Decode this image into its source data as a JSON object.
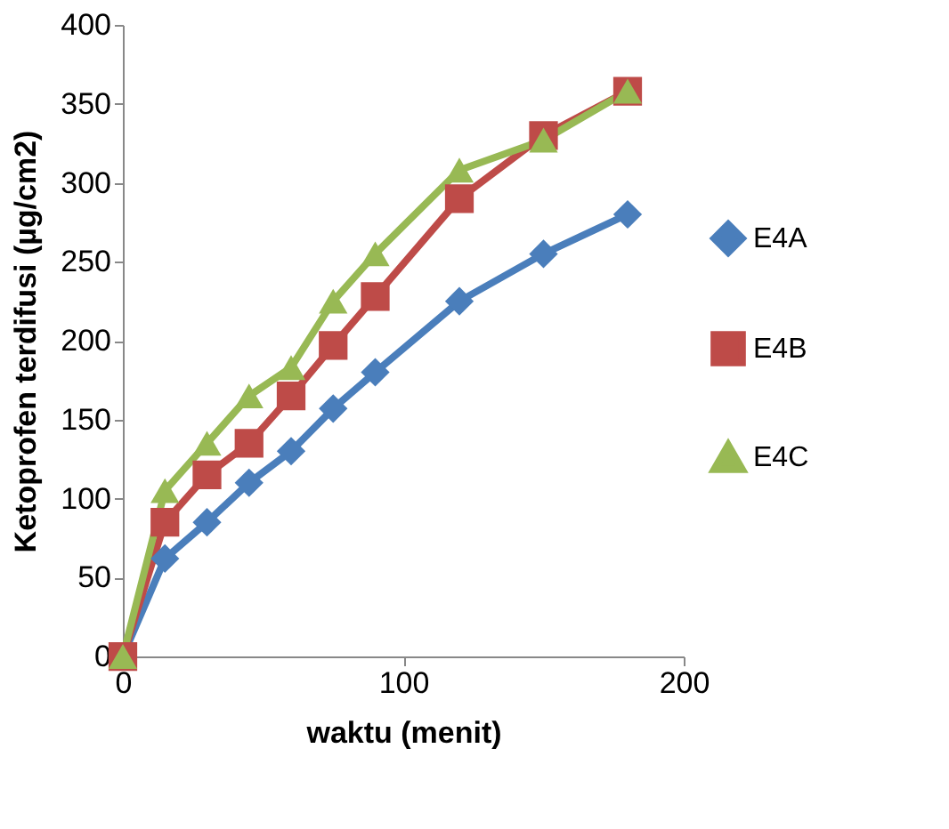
{
  "chart_data": {
    "type": "line",
    "xlabel": "waktu (menit)",
    "ylabel": "Ketoprofen terdifusi (µg/cm2)",
    "x": [
      0,
      15,
      30,
      45,
      60,
      75,
      90,
      120,
      150,
      180
    ],
    "series": [
      {
        "name": "E4A",
        "color": "#4a7ebb",
        "marker": "diamond",
        "values": [
          0,
          62,
          85,
          110,
          130,
          157,
          180,
          225,
          255,
          280
        ]
      },
      {
        "name": "E4B",
        "color": "#be4b48",
        "marker": "square",
        "values": [
          0,
          85,
          115,
          135,
          165,
          197,
          228,
          290,
          330,
          358
        ]
      },
      {
        "name": "E4C",
        "color": "#98b954",
        "marker": "triangle",
        "values": [
          0,
          105,
          135,
          165,
          183,
          225,
          255,
          308,
          327,
          358
        ]
      }
    ],
    "xlim": [
      0,
      200
    ],
    "xticks": [
      0,
      100,
      200
    ],
    "ylim": [
      0,
      400
    ],
    "yticks": [
      0,
      50,
      100,
      150,
      200,
      250,
      300,
      350,
      400
    ],
    "grid": false,
    "legend": "right",
    "line_style": "solid"
  }
}
